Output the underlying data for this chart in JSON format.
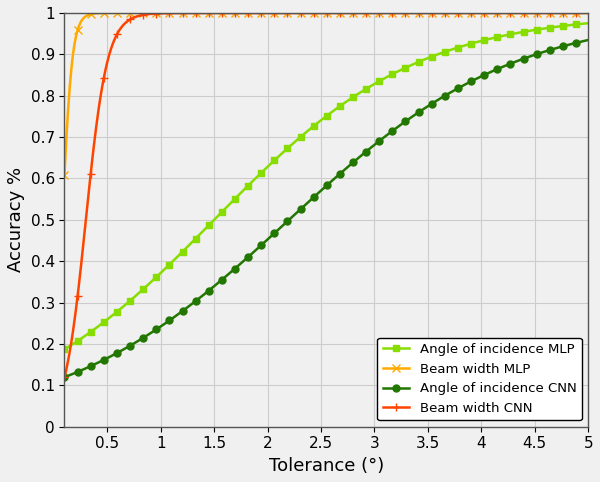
{
  "title": "",
  "xlabel": "Tolerance (°)",
  "ylabel": "Accuracy %",
  "xlim": [
    0.1,
    5.0
  ],
  "ylim": [
    0.0,
    1.0
  ],
  "xtick_vals": [
    0.5,
    1.0,
    1.5,
    2.0,
    2.5,
    3.0,
    3.5,
    4.0,
    4.5,
    5.0
  ],
  "xtick_labels": [
    "0.5",
    "1",
    "1.5",
    "2",
    "2.5",
    "3",
    "3.5",
    "4",
    "4.5",
    "5"
  ],
  "ytick_vals": [
    0.0,
    0.1,
    0.2,
    0.3,
    0.4,
    0.5,
    0.6,
    0.7,
    0.8,
    0.9,
    1.0
  ],
  "ytick_labels": [
    "0",
    "0.1",
    "0.2",
    "0.3",
    "0.4",
    "0.5",
    "0.6",
    "0.7",
    "0.8",
    "0.9",
    "1"
  ],
  "series": [
    {
      "label": "Angle of incidence MLP",
      "color": "#88dd00",
      "marker": "s",
      "markersize": 5,
      "linewidth": 1.8
    },
    {
      "label": "Beam width MLP",
      "color": "#ffaa00",
      "marker": "x",
      "markersize": 6,
      "linewidth": 1.8
    },
    {
      "label": "Angle of incidence CNN",
      "color": "#227700",
      "marker": "o",
      "markersize": 5,
      "linewidth": 1.8
    },
    {
      "label": "Beam width CNN",
      "color": "#ff4400",
      "marker": "+",
      "markersize": 6,
      "linewidth": 1.8
    }
  ],
  "legend_loc": "lower right",
  "grid_color": "#cccccc",
  "bg_color": "#f0f0f0",
  "marker_every": 15
}
